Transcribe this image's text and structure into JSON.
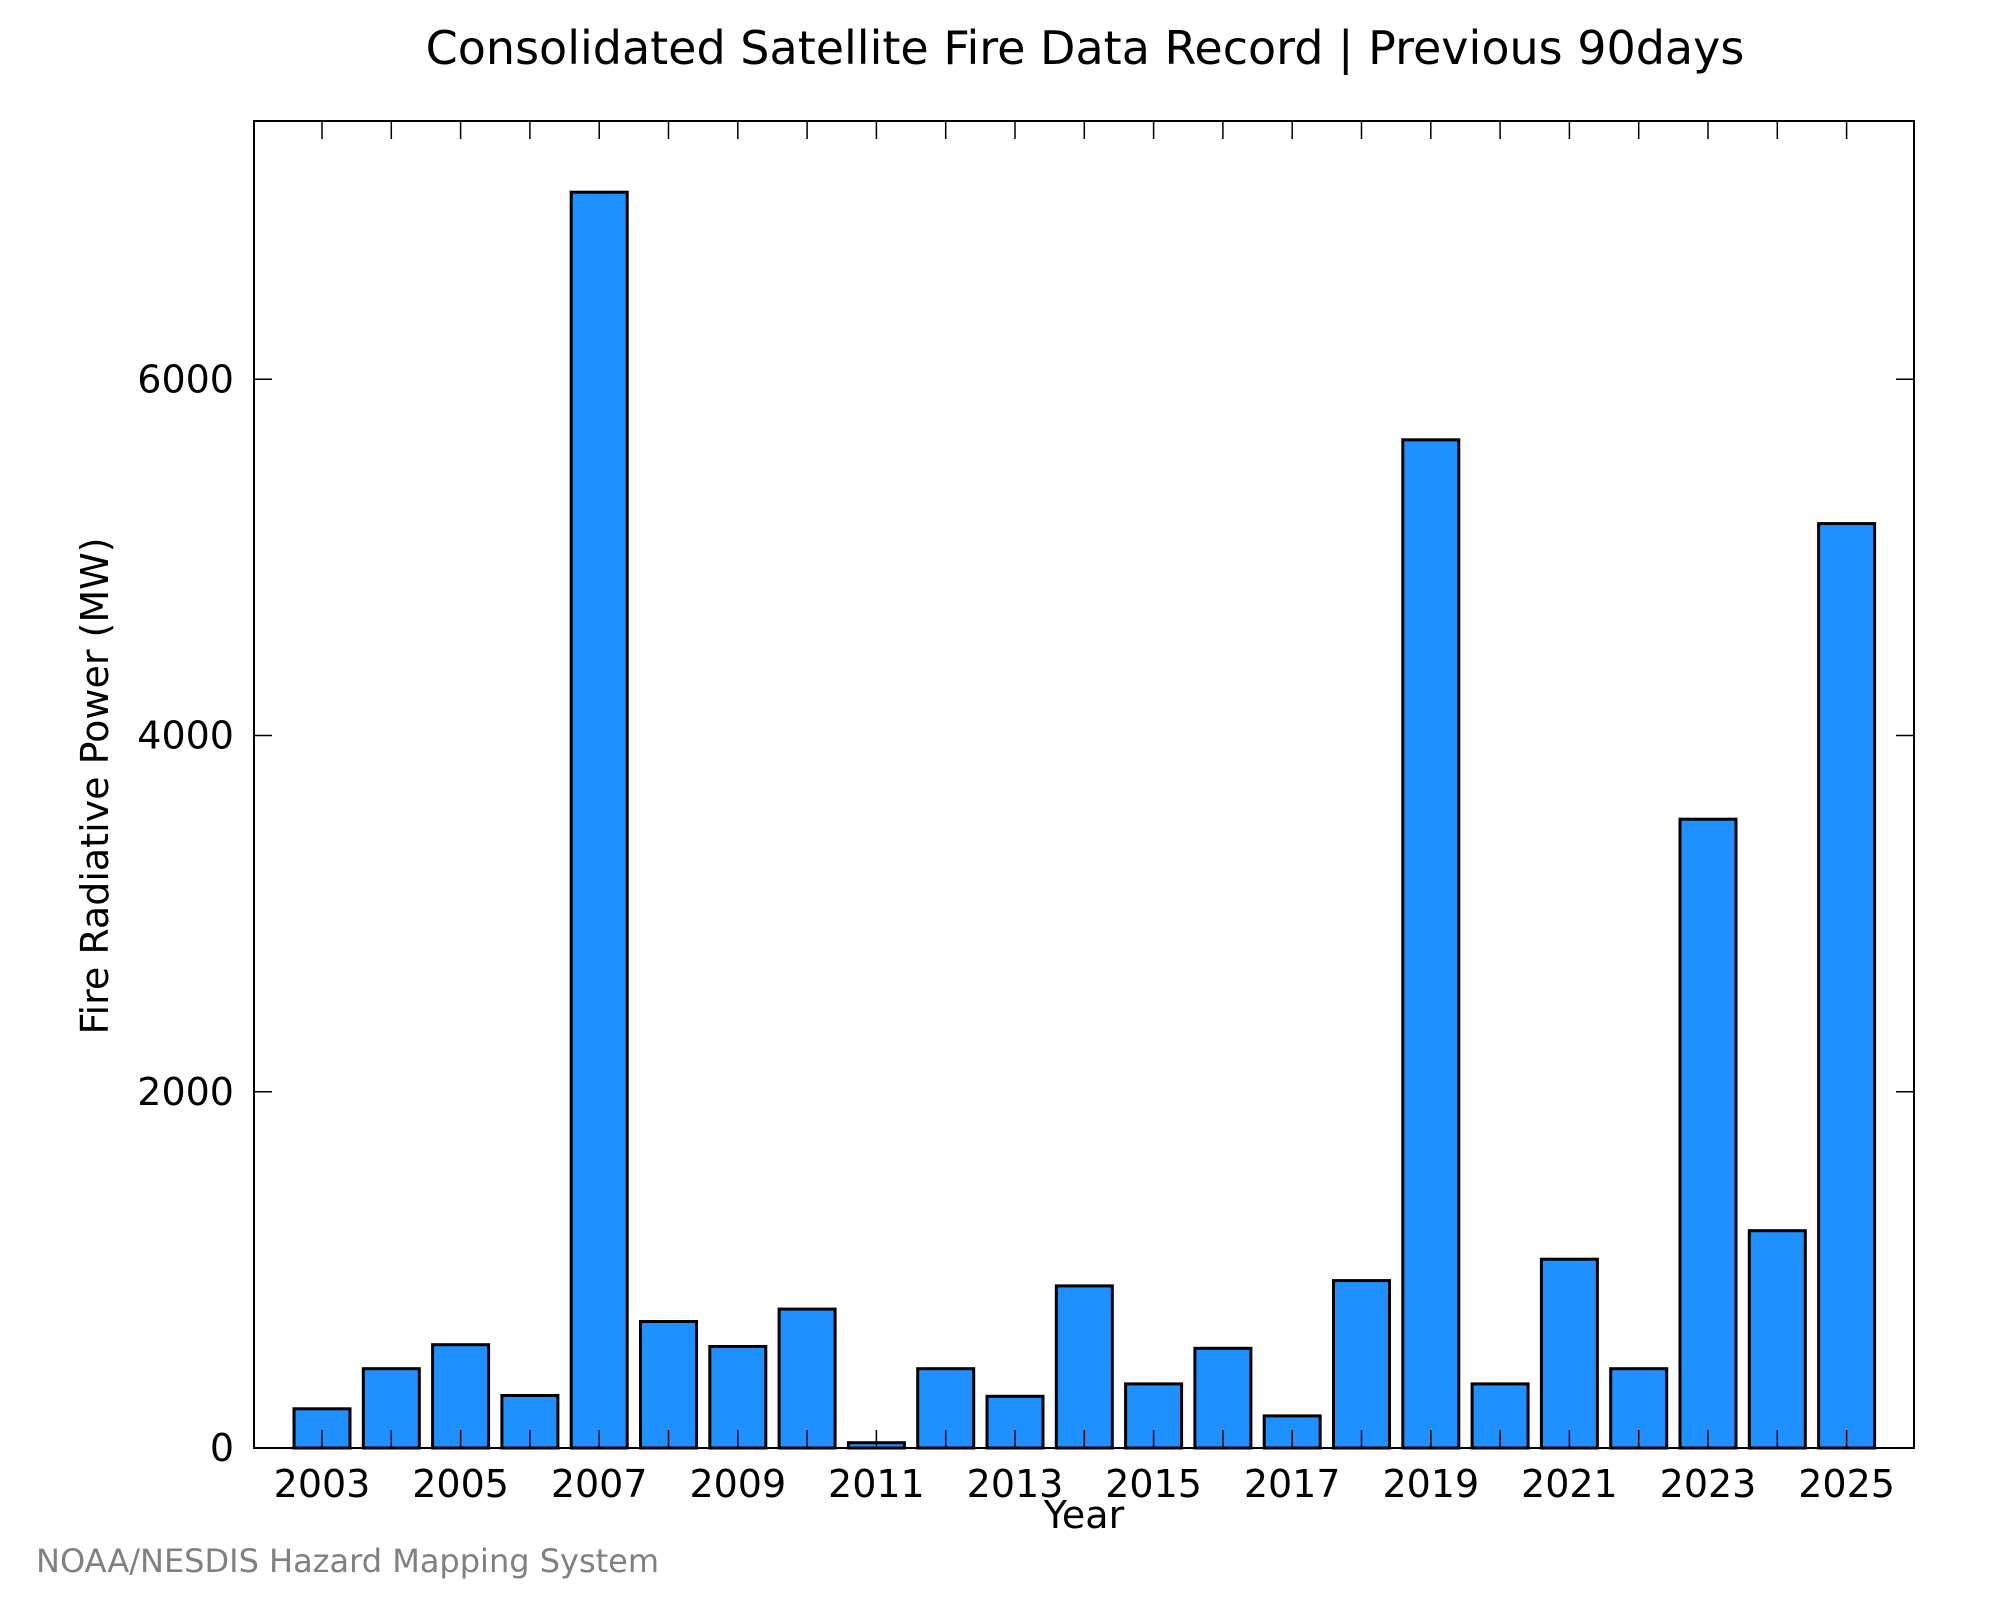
{
  "chart_data": {
    "type": "bar",
    "title": "Consolidated Satellite Fire Data Record | Previous 90days",
    "xlabel": "Year",
    "ylabel": "Fire Radiative Power (MW)",
    "credit": "NOAA/NESDIS Hazard Mapping System",
    "categories": [
      "2003",
      "2004",
      "2005",
      "2006",
      "2007",
      "2008",
      "2009",
      "2010",
      "2011",
      "2012",
      "2013",
      "2014",
      "2015",
      "2016",
      "2017",
      "2018",
      "2019",
      "2020",
      "2021",
      "2022",
      "2023",
      "2024",
      "2025"
    ],
    "x_tick_labels": [
      "2003",
      "2005",
      "2007",
      "2009",
      "2011",
      "2013",
      "2015",
      "2017",
      "2019",
      "2021",
      "2023",
      "2025"
    ],
    "values": [
      220,
      445,
      580,
      295,
      7050,
      710,
      570,
      780,
      30,
      445,
      290,
      910,
      360,
      560,
      180,
      940,
      5660,
      360,
      1060,
      445,
      3530,
      1220,
      5190
    ],
    "ylim": [
      0,
      7450
    ],
    "y_ticks": [
      0,
      2000,
      4000,
      6000
    ],
    "grid": false,
    "colors": {
      "bar_fill": "#1E90FF",
      "bar_edge": "#000000",
      "axis": "#000000",
      "credit": "#808080"
    }
  }
}
